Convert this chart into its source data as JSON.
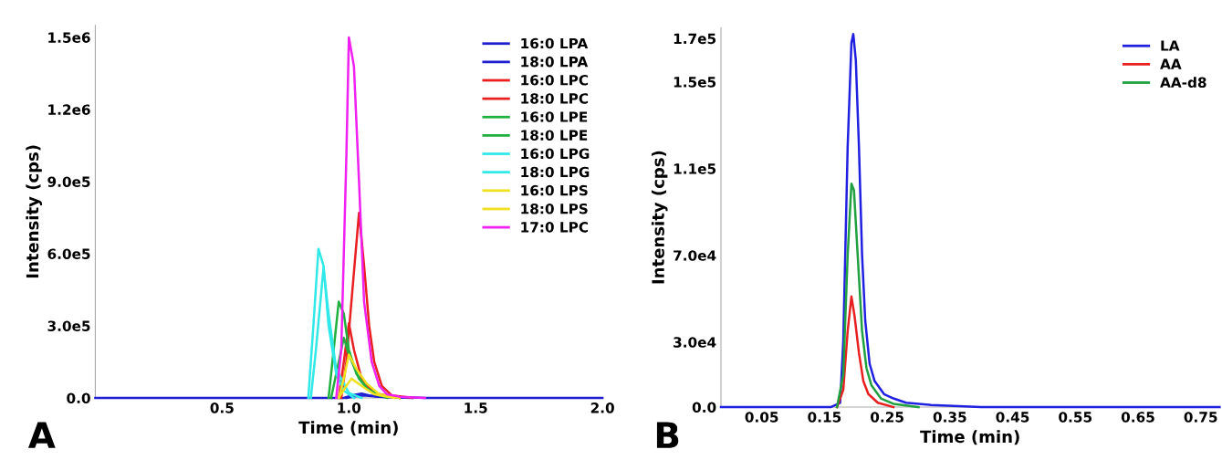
{
  "chart_data": [
    {
      "type": "line",
      "xlabel": "Time (min)",
      "ylabel": "Intensity (cps)",
      "annotations": [
        "A"
      ],
      "legend": "top right",
      "xlim": [
        0,
        2.0
      ],
      "xticks": [
        {
          "value": 0.5,
          "label": "0.5"
        },
        {
          "value": 1.0,
          "label": "1.0"
        },
        {
          "value": 1.5,
          "label": "1.5"
        },
        {
          "value": 2.0,
          "label": "2.0"
        }
      ],
      "ylim": [
        0,
        1550000
      ],
      "yticks": [
        {
          "value": 0,
          "label": "0.0"
        },
        {
          "value": 300000,
          "label": "3.0e5"
        },
        {
          "value": 600000,
          "label": "6.0e5"
        },
        {
          "value": 900000,
          "label": "9.0e5"
        },
        {
          "value": 1200000,
          "label": "1.2e6"
        },
        {
          "value": 1500000,
          "label": "1.5e6"
        }
      ],
      "series": [
        {
          "name": "16:0 LPA",
          "color": "#1f1fd0",
          "x": [
            0,
            0.98,
            1.02,
            1.05,
            1.08,
            1.15,
            1.25,
            1.3,
            2.0
          ],
          "values": [
            0,
            0,
            12000,
            18000,
            10000,
            3000,
            2000,
            0,
            0
          ]
        },
        {
          "name": "18:0 LPA",
          "color": "#1f1fd0",
          "x": [
            0.99,
            1.03,
            1.06,
            1.1,
            1.18,
            1.25
          ],
          "values": [
            0,
            7000,
            10000,
            6000,
            2000,
            0
          ]
        },
        {
          "name": "16:0 LPC",
          "color": "#e82020",
          "x": [
            0.97,
            0.99,
            1.01,
            1.04,
            1.06,
            1.08,
            1.1,
            1.13,
            1.17,
            1.25
          ],
          "values": [
            0,
            150000,
            400000,
            770000,
            550000,
            300000,
            150000,
            50000,
            10000,
            0
          ]
        },
        {
          "name": "18:0 LPC",
          "color": "#e82020",
          "x": [
            0.96,
            0.98,
            1.0,
            1.02,
            1.05,
            1.1,
            1.2
          ],
          "values": [
            0,
            150000,
            310000,
            200000,
            80000,
            20000,
            0
          ]
        },
        {
          "name": "16:0 LPE",
          "color": "#20b040",
          "x": [
            0.92,
            0.94,
            0.96,
            0.98,
            1.0,
            1.03,
            1.07,
            1.12,
            1.2
          ],
          "values": [
            0,
            200000,
            400000,
            350000,
            200000,
            100000,
            40000,
            10000,
            0
          ]
        },
        {
          "name": "18:0 LPE",
          "color": "#20b040",
          "x": [
            0.93,
            0.96,
            0.98,
            1.0,
            1.04,
            1.08,
            1.15
          ],
          "values": [
            0,
            150000,
            250000,
            180000,
            80000,
            30000,
            0
          ]
        },
        {
          "name": "16:0 LPG",
          "color": "#30e8e8",
          "x": [
            0.84,
            0.86,
            0.88,
            0.9,
            0.92,
            0.95,
            0.98,
            1.02
          ],
          "values": [
            0,
            300000,
            620000,
            550000,
            300000,
            100000,
            30000,
            0
          ]
        },
        {
          "name": "18:0 LPG",
          "color": "#30e8e8",
          "x": [
            0.85,
            0.87,
            0.9,
            0.92,
            0.95,
            1.0,
            1.05
          ],
          "values": [
            0,
            200000,
            540000,
            350000,
            120000,
            20000,
            0
          ]
        },
        {
          "name": "16:0 LPS",
          "color": "#f0e020",
          "x": [
            0.96,
            0.98,
            1.0,
            1.03,
            1.07,
            1.12,
            1.2
          ],
          "values": [
            0,
            80000,
            180000,
            120000,
            60000,
            15000,
            0
          ]
        },
        {
          "name": "18:0 LPS",
          "color": "#f0e020",
          "x": [
            0.96,
            0.99,
            1.01,
            1.05,
            1.1,
            1.18
          ],
          "values": [
            0,
            50000,
            80000,
            50000,
            15000,
            0
          ]
        },
        {
          "name": "17:0 LPC",
          "color": "#f020f0",
          "x": [
            0.95,
            0.97,
            0.99,
            1.0,
            1.02,
            1.04,
            1.06,
            1.09,
            1.12,
            1.15,
            1.2,
            1.3
          ],
          "values": [
            0,
            200000,
            1000000,
            1500000,
            1380000,
            900000,
            400000,
            150000,
            50000,
            15000,
            5000,
            0
          ]
        }
      ]
    },
    {
      "type": "line",
      "xlabel": "Time (min)",
      "ylabel": "Intensity (cps)",
      "annotations": [
        "B"
      ],
      "legend": "top right",
      "xlim": [
        -0.015,
        0.78
      ],
      "xticks": [
        0.05,
        0.15,
        0.25,
        0.35,
        0.45,
        0.55,
        0.65,
        0.75
      ],
      "ylim": [
        0,
        175000
      ],
      "yticks": [
        {
          "value": 0,
          "label": "0.0"
        },
        {
          "value": 30000,
          "label": "3.0e4"
        },
        {
          "value": 70000,
          "label": "7.0e4"
        },
        {
          "value": 110000,
          "label": "1.1e5"
        },
        {
          "value": 150000,
          "label": "1.5e5"
        },
        {
          "value": 170000,
          "label": "1.7e5"
        }
      ],
      "series": [
        {
          "name": "LA",
          "color": "#2020e0",
          "x": [
            -0.015,
            0.16,
            0.175,
            0.18,
            0.187,
            0.193,
            0.196,
            0.2,
            0.205,
            0.21,
            0.215,
            0.222,
            0.23,
            0.245,
            0.26,
            0.28,
            0.32,
            0.4,
            0.78
          ],
          "values": [
            0,
            0,
            2000,
            30000,
            120000,
            168000,
            172000,
            160000,
            120000,
            70000,
            40000,
            20000,
            12000,
            6000,
            4000,
            2000,
            1000,
            0,
            0
          ]
        },
        {
          "name": "AA",
          "color": "#e82020",
          "x": [
            0.17,
            0.18,
            0.187,
            0.193,
            0.198,
            0.205,
            0.212,
            0.22,
            0.235,
            0.26
          ],
          "values": [
            0,
            8000,
            35000,
            51000,
            42000,
            25000,
            12000,
            6000,
            2000,
            0
          ]
        },
        {
          "name": "AA-d8",
          "color": "#20a040",
          "x": [
            0.17,
            0.18,
            0.187,
            0.193,
            0.197,
            0.203,
            0.21,
            0.217,
            0.225,
            0.24,
            0.26,
            0.3
          ],
          "values": [
            0,
            15000,
            70000,
            103000,
            100000,
            70000,
            35000,
            18000,
            10000,
            4000,
            1500,
            0
          ]
        }
      ]
    }
  ]
}
